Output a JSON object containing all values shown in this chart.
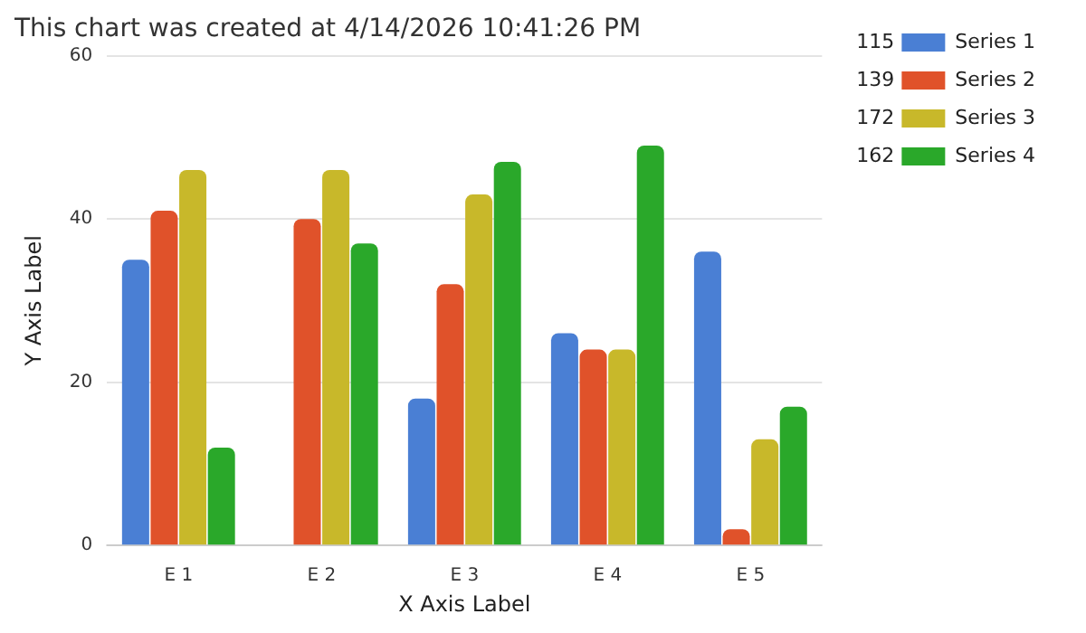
{
  "chart_data": {
    "type": "bar",
    "title": "This chart was created at 4/14/2026 10:41:26 PM",
    "xlabel": "X Axis Label",
    "ylabel": "Y Axis Label",
    "categories": [
      "E 1",
      "E 2",
      "E 3",
      "E 4",
      "E 5"
    ],
    "series": [
      {
        "name": "Series 1",
        "color": "#4a7fd4",
        "values": [
          35,
          0,
          18,
          26,
          36
        ]
      },
      {
        "name": "Series 2",
        "color": "#e0522a",
        "values": [
          41,
          40,
          32,
          24,
          2
        ]
      },
      {
        "name": "Series 3",
        "color": "#c8b82a",
        "values": [
          46,
          46,
          43,
          24,
          13
        ]
      },
      {
        "name": "Series 4",
        "color": "#2aa82a",
        "values": [
          12,
          37,
          47,
          49,
          17
        ]
      }
    ],
    "annotations": [
      "115",
      "139",
      "172",
      "162"
    ],
    "ylim": [
      0,
      60
    ],
    "yticks": [
      0,
      20,
      40,
      60
    ],
    "grid": "y",
    "legend": "top right"
  }
}
